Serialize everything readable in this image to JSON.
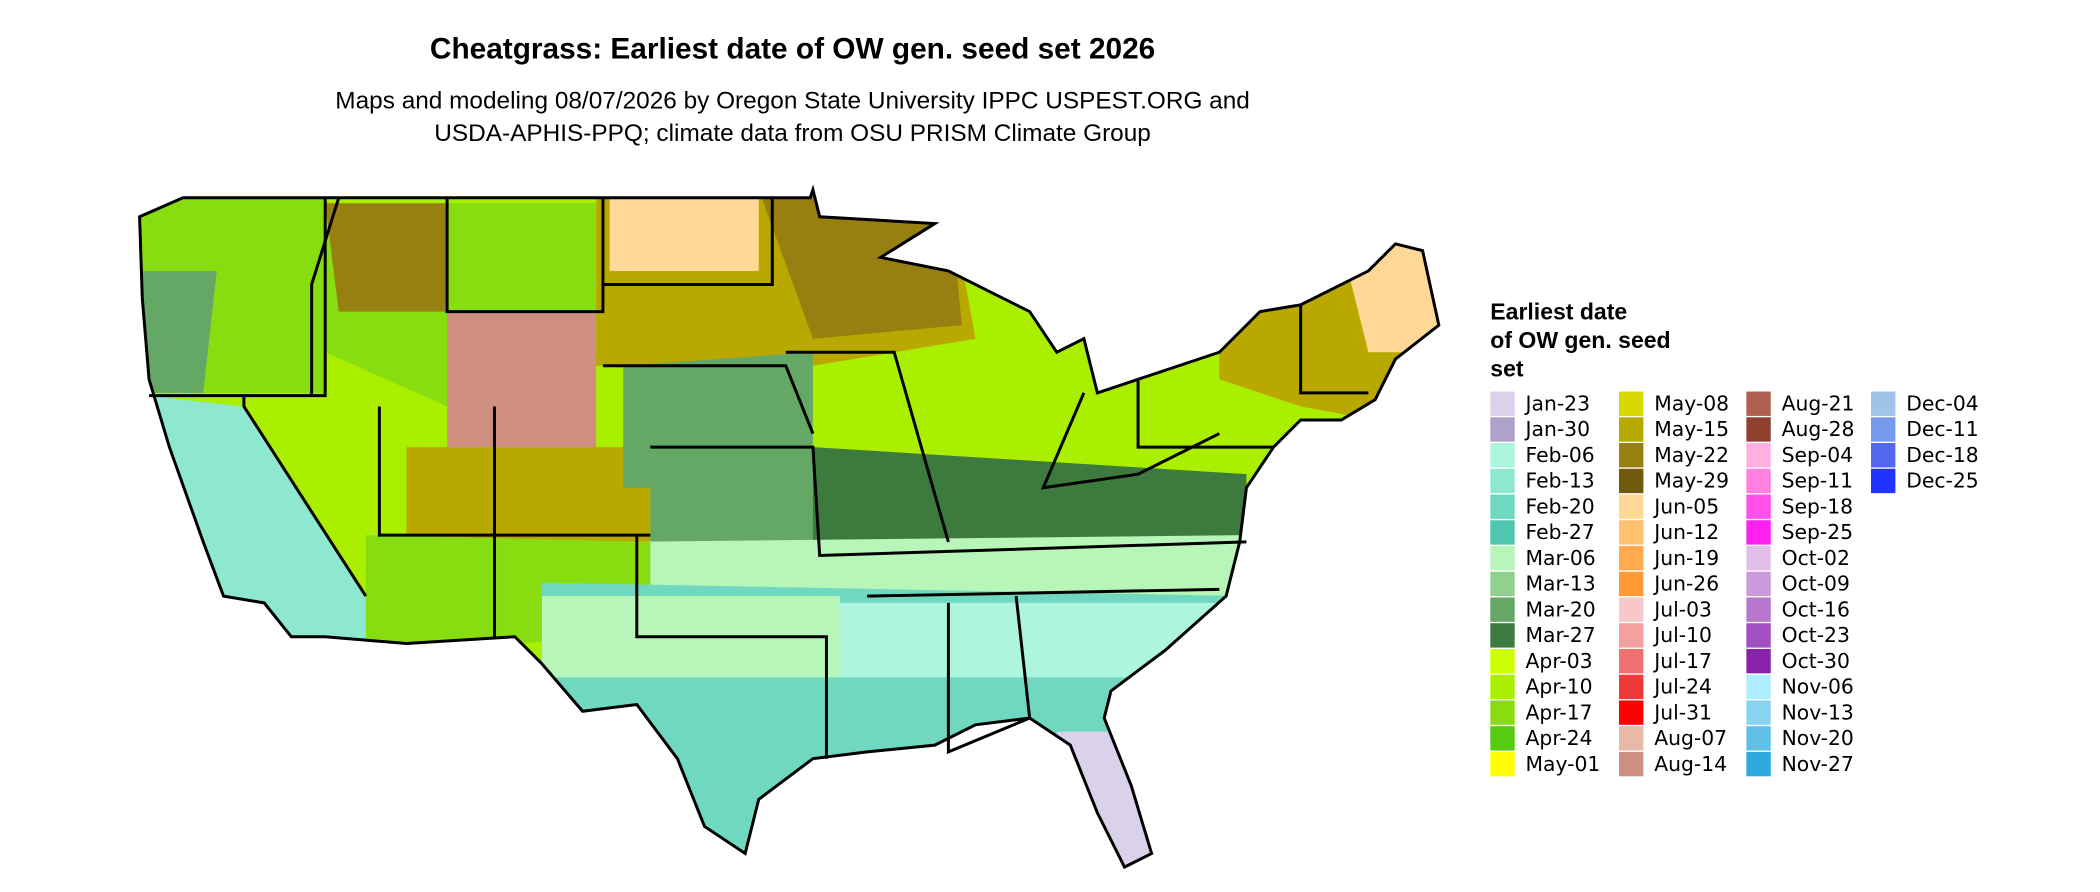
{
  "title": "Cheatgrass: Earliest date of OW gen. seed set 2026",
  "subtitle": [
    "Maps and modeling 08/07/2026 by Oregon State University IPPC USPEST.ORG and",
    "USDA-APHIS-PPQ; climate data from OSU PRISM Climate Group"
  ],
  "legend": {
    "title": [
      "Earliest date",
      "of OW gen. seed",
      "set"
    ],
    "columns": [
      [
        {
          "label": "Jan-23",
          "color": "#d9d2ea"
        },
        {
          "label": "Jan-30",
          "color": "#b0a0cc"
        },
        {
          "label": "Feb-06",
          "color": "#aef5e0"
        },
        {
          "label": "Feb-13",
          "color": "#8ee8cf"
        },
        {
          "label": "Feb-20",
          "color": "#70d8c0"
        },
        {
          "label": "Feb-27",
          "color": "#4fc7b0"
        },
        {
          "label": "Mar-06",
          "color": "#b8f5b8"
        },
        {
          "label": "Mar-13",
          "color": "#90d090"
        },
        {
          "label": "Mar-20",
          "color": "#65a865"
        },
        {
          "label": "Mar-27",
          "color": "#3d7a3d"
        },
        {
          "label": "Apr-03",
          "color": "#ccff00"
        },
        {
          "label": "Apr-10",
          "color": "#aaee00"
        },
        {
          "label": "Apr-17",
          "color": "#88dd11"
        },
        {
          "label": "Apr-24",
          "color": "#55cc11"
        },
        {
          "label": "May-01",
          "color": "#ffff00"
        }
      ],
      [
        {
          "label": "May-08",
          "color": "#d8d800"
        },
        {
          "label": "May-15",
          "color": "#b8a800"
        },
        {
          "label": "May-22",
          "color": "#988010"
        },
        {
          "label": "May-29",
          "color": "#705a10"
        },
        {
          "label": "Jun-05",
          "color": "#ffd898"
        },
        {
          "label": "Jun-12",
          "color": "#ffc070"
        },
        {
          "label": "Jun-19",
          "color": "#ffaa50"
        },
        {
          "label": "Jun-26",
          "color": "#ff9933"
        },
        {
          "label": "Jul-03",
          "color": "#f8c8c8"
        },
        {
          "label": "Jul-10",
          "color": "#f4a0a0"
        },
        {
          "label": "Jul-17",
          "color": "#f07070"
        },
        {
          "label": "Jul-24",
          "color": "#f03838"
        },
        {
          "label": "Jul-31",
          "color": "#ff0000"
        },
        {
          "label": "Aug-07",
          "color": "#e8b8a8"
        },
        {
          "label": "Aug-14",
          "color": "#d09080"
        }
      ],
      [
        {
          "label": "Aug-21",
          "color": "#b06050"
        },
        {
          "label": "Aug-28",
          "color": "#904030"
        },
        {
          "label": "Sep-04",
          "color": "#ffb0e0"
        },
        {
          "label": "Sep-11",
          "color": "#ff80e0"
        },
        {
          "label": "Sep-18",
          "color": "#ff50e8"
        },
        {
          "label": "Sep-25",
          "color": "#ff20f0"
        },
        {
          "label": "Oct-02",
          "color": "#e0c0e8"
        },
        {
          "label": "Oct-09",
          "color": "#cc99dd"
        },
        {
          "label": "Oct-16",
          "color": "#b877cc"
        },
        {
          "label": "Oct-23",
          "color": "#a050c0"
        },
        {
          "label": "Oct-30",
          "color": "#8822aa"
        },
        {
          "label": "Nov-06",
          "color": "#b0eeff"
        },
        {
          "label": "Nov-13",
          "color": "#88d4f0"
        },
        {
          "label": "Nov-20",
          "color": "#60c0e8"
        },
        {
          "label": "Nov-27",
          "color": "#30aadd"
        }
      ],
      [
        {
          "label": "Dec-04",
          "color": "#a0c4e8"
        },
        {
          "label": "Dec-11",
          "color": "#7799ee"
        },
        {
          "label": "Dec-18",
          "color": "#5566ee"
        },
        {
          "label": "Dec-25",
          "color": "#2233ff"
        }
      ]
    ]
  }
}
